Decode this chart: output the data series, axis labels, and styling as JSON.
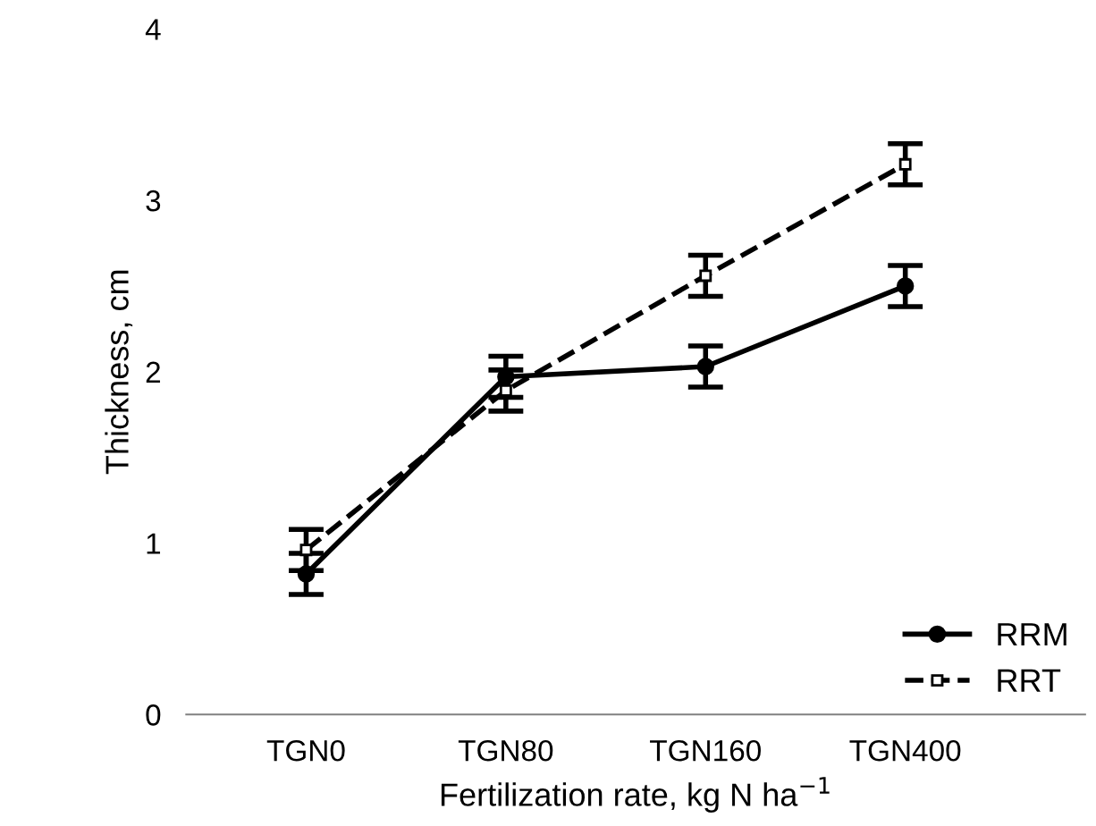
{
  "chart_data": {
    "type": "line",
    "xlabel": "Fertilization rate, kg N ha$^{−1}$",
    "ylabel": "Thickness, cm",
    "categories": [
      "TGN0",
      "TGN80",
      "TGN160",
      "TGN400"
    ],
    "series": [
      {
        "name": "RRM",
        "color": "#000000",
        "values": [
          0.82,
          1.97,
          2.03,
          2.5
        ],
        "errors": [
          0.12,
          0.12,
          0.12,
          0.12
        ],
        "marker": "circle",
        "line_style": "solid"
      },
      {
        "name": "RRT",
        "color": "#000000",
        "values": [
          0.96,
          1.89,
          2.56,
          3.21
        ],
        "errors": [
          0.12,
          0.12,
          0.12,
          0.12
        ],
        "marker": "square",
        "line_style": "dashed"
      }
    ],
    "ylim": [
      0,
      4
    ],
    "yticks": [
      0,
      1,
      2,
      3,
      4
    ],
    "grid": false,
    "legend": "bottom right"
  }
}
